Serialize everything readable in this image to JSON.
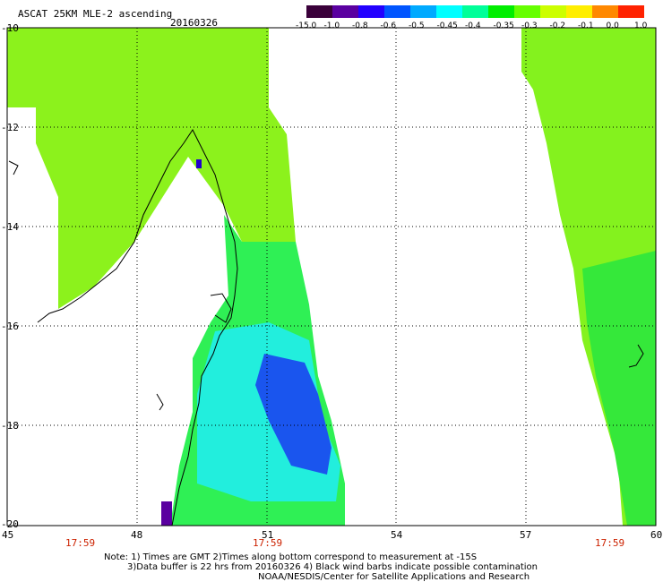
{
  "header": {
    "title": "ASCAT 25KM MLE-2 ascending",
    "date": "20160326"
  },
  "colorbar": {
    "labels": [
      "-15.0",
      "-1.0",
      "-0.8",
      "-0.6",
      "-0.5",
      "-0.45",
      "-0.4",
      "-0.35",
      "-0.3",
      "-0.2",
      "-0.1",
      "0.0",
      "1.0"
    ],
    "colors": [
      "#3a003a",
      "#5a00a0",
      "#2200ff",
      "#0055ff",
      "#00aaff",
      "#00ffff",
      "#00ff99",
      "#00ee00",
      "#66ff00",
      "#ccff00",
      "#ffee00",
      "#ff8800",
      "#ff2200"
    ]
  },
  "axes": {
    "lat_labels": [
      "-10",
      "-12",
      "-14",
      "-16",
      "-18",
      "-20"
    ],
    "lon_labels": [
      "45",
      "48",
      "51",
      "54",
      "57",
      "60"
    ]
  },
  "swath_times": [
    "17:59",
    "17:59",
    "17:59"
  ],
  "notes": [
    "Note: 1) Times are GMT 2)Times along bottom correspond to measurement at -15S",
    "3)Data buffer is 22 hrs from 20160326 4) Black wind barbs indicate possible contamination",
    "NOAA/NESDIS/Center for Satellite Applications and Research"
  ]
}
